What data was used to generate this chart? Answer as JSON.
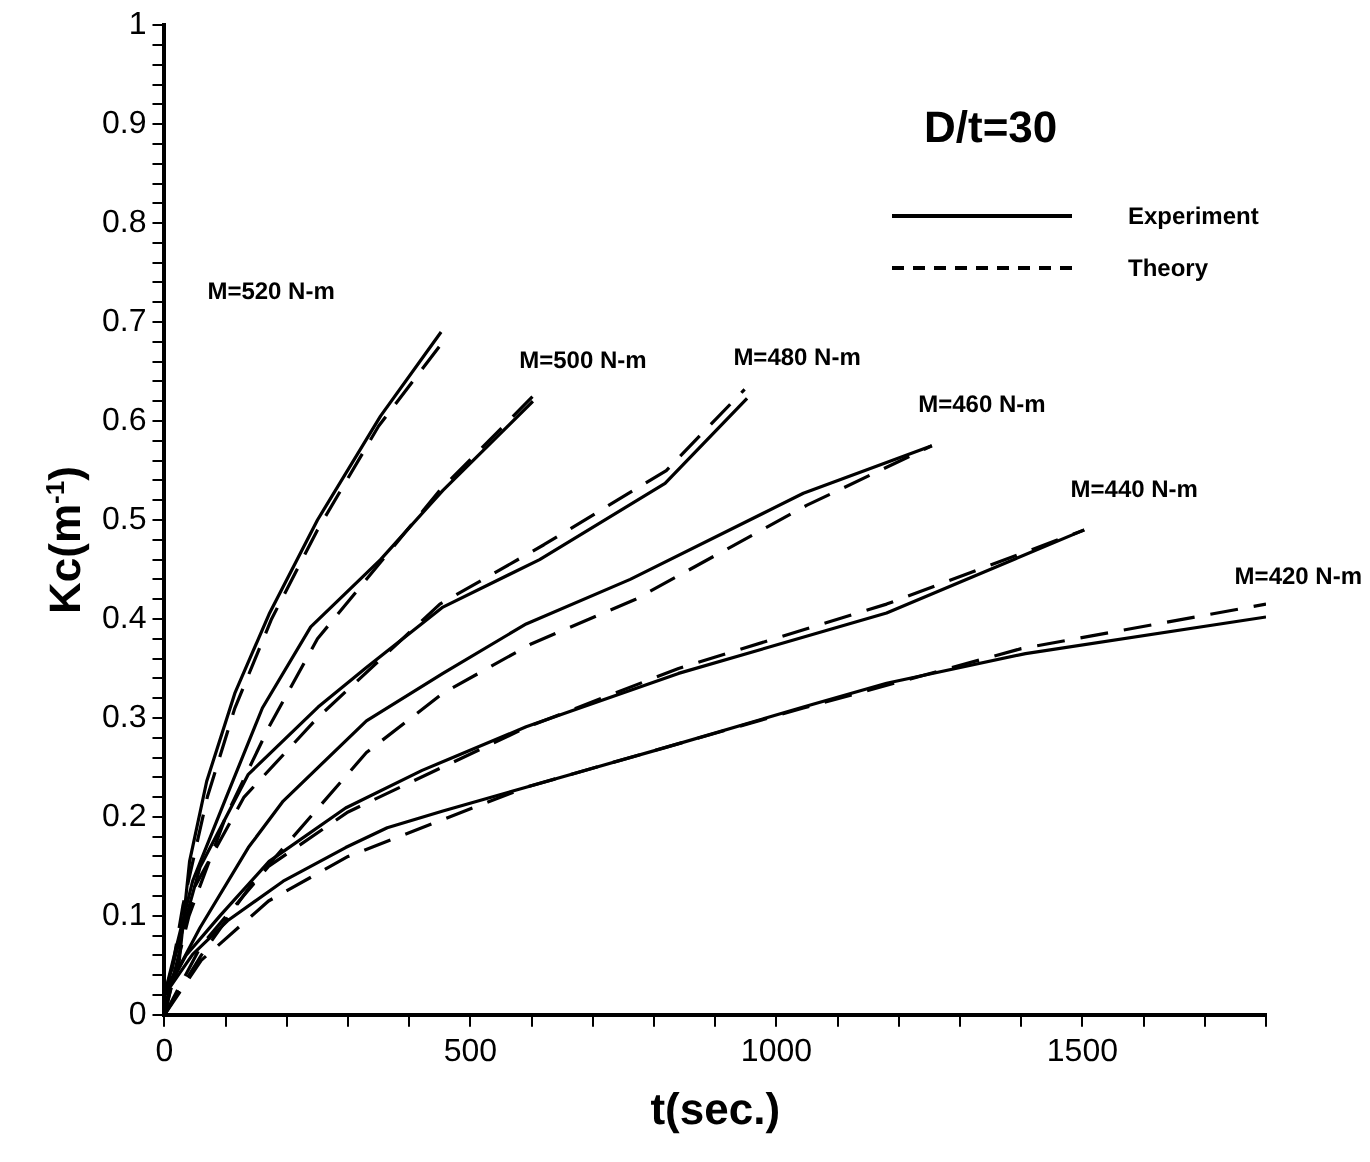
{
  "chart_data": {
    "type": "line",
    "xlabel": "t(sec.)",
    "ylabel": "Kc(m$^{-1}$)",
    "legend_title": "D/t=30",
    "xlim": [
      0,
      1800
    ],
    "ylim": [
      0,
      1
    ],
    "xticks": [
      0,
      {
        "value": 100,
        "label": null
      },
      {
        "value": 200,
        "label": null
      },
      {
        "value": 300,
        "label": null
      },
      {
        "value": 400,
        "label": null
      },
      500,
      {
        "value": 600,
        "label": null
      },
      {
        "value": 700,
        "label": null
      },
      {
        "value": 800,
        "label": null
      },
      {
        "value": 900,
        "label": null
      },
      1000,
      {
        "value": 1100,
        "label": null
      },
      {
        "value": 1200,
        "label": null
      },
      {
        "value": 1300,
        "label": null
      },
      {
        "value": 1400,
        "label": null
      },
      1500,
      {
        "value": 1600,
        "label": null
      },
      {
        "value": 1700,
        "label": null
      },
      {
        "value": 1800,
        "label": null
      }
    ],
    "yticks": [
      0,
      {
        "value": 0.02,
        "label": null
      },
      {
        "value": 0.04,
        "label": null
      },
      {
        "value": 0.06,
        "label": null
      },
      {
        "value": 0.08,
        "label": null
      },
      0.1,
      {
        "value": 0.12,
        "label": null
      },
      {
        "value": 0.14,
        "label": null
      },
      {
        "value": 0.16,
        "label": null
      },
      {
        "value": 0.18,
        "label": null
      },
      0.2,
      {
        "value": 0.22,
        "label": null
      },
      {
        "value": 0.24,
        "label": null
      },
      {
        "value": 0.26,
        "label": null
      },
      {
        "value": 0.28,
        "label": null
      },
      0.3,
      {
        "value": 0.32,
        "label": null
      },
      {
        "value": 0.34,
        "label": null
      },
      {
        "value": 0.36,
        "label": null
      },
      {
        "value": 0.38,
        "label": null
      },
      0.4,
      {
        "value": 0.42,
        "label": null
      },
      {
        "value": 0.44,
        "label": null
      },
      {
        "value": 0.46,
        "label": null
      },
      {
        "value": 0.48,
        "label": null
      },
      0.5,
      {
        "value": 0.52,
        "label": null
      },
      {
        "value": 0.54,
        "label": null
      },
      {
        "value": 0.56,
        "label": null
      },
      {
        "value": 0.58,
        "label": null
      },
      0.6,
      {
        "value": 0.62,
        "label": null
      },
      {
        "value": 0.64,
        "label": null
      },
      {
        "value": 0.66,
        "label": null
      },
      {
        "value": 0.68,
        "label": null
      },
      0.7,
      {
        "value": 0.72,
        "label": null
      },
      {
        "value": 0.74,
        "label": null
      },
      {
        "value": 0.76,
        "label": null
      },
      {
        "value": 0.78,
        "label": null
      },
      0.8,
      {
        "value": 0.82,
        "label": null
      },
      {
        "value": 0.84,
        "label": null
      },
      {
        "value": 0.86,
        "label": null
      },
      {
        "value": 0.88,
        "label": null
      },
      0.9,
      {
        "value": 0.92,
        "label": null
      },
      {
        "value": 0.94,
        "label": null
      },
      {
        "value": 0.96,
        "label": null
      },
      {
        "value": 0.98,
        "label": null
      },
      1
    ],
    "grid": false,
    "legend": "top right",
    "marker": "none",
    "series": [
      {
        "name": "Experiment",
        "color": "#000000",
        "line_style": "solid",
        "x": [
          0,
          24,
          41,
          69,
          115,
          171,
          250,
          353,
          452
        ],
        "values": [
          0.02,
          0.054,
          0.155,
          0.236,
          0.325,
          0.405,
          0.5,
          0.605,
          0.69
        ]
      },
      {
        "name": "Theory",
        "color": "#000000",
        "line_style": "dashed",
        "x": [
          0,
          30,
          70,
          115,
          175,
          250,
          350,
          455
        ],
        "values": [
          0,
          0.11,
          0.22,
          0.31,
          0.4,
          0.49,
          0.595,
          0.68
        ]
      },
      {
        "color": "#000000",
        "line_style": "solid",
        "x": [
          0,
          46,
          103,
          160,
          239,
          353,
          455,
          602
        ],
        "values": [
          0.02,
          0.135,
          0.223,
          0.31,
          0.392,
          0.46,
          0.53,
          0.62
        ]
      },
      {
        "color": "#000000",
        "line_style": "dashed",
        "x": [
          0,
          40,
          100,
          170,
          250,
          350,
          450,
          602
        ],
        "values": [
          0,
          0.1,
          0.2,
          0.29,
          0.38,
          0.455,
          0.53,
          0.625
        ]
      },
      {
        "color": "#000000",
        "line_style": "solid",
        "x": [
          0,
          58,
          137,
          251,
          330,
          455,
          613,
          818,
          952
        ],
        "values": [
          0.02,
          0.149,
          0.243,
          0.311,
          0.351,
          0.412,
          0.46,
          0.537,
          0.623
        ]
      },
      {
        "color": "#000000",
        "line_style": "dashed",
        "x": [
          0,
          50,
          130,
          250,
          450,
          620,
          820,
          948
        ],
        "values": [
          0,
          0.13,
          0.22,
          0.3,
          0.415,
          0.475,
          0.55,
          0.632
        ]
      },
      {
        "color": "#000000",
        "line_style": "solid",
        "x": [
          0,
          58,
          137,
          194,
          330,
          455,
          591,
          761,
          1044,
          1254
        ],
        "values": [
          0.02,
          0.088,
          0.169,
          0.216,
          0.297,
          0.345,
          0.395,
          0.44,
          0.527,
          0.575
        ]
      },
      {
        "color": "#000000",
        "line_style": "dashed",
        "x": [
          0,
          60,
          140,
          330,
          455,
          600,
          770,
          1050,
          1254
        ],
        "values": [
          0,
          0.06,
          0.13,
          0.265,
          0.325,
          0.375,
          0.42,
          0.515,
          0.575
        ]
      },
      {
        "color": "#000000",
        "line_style": "solid",
        "x": [
          0,
          35,
          92,
          171,
          296,
          421,
          591,
          840,
          1180,
          1503
        ],
        "values": [
          0.02,
          0.06,
          0.101,
          0.155,
          0.209,
          0.247,
          0.291,
          0.345,
          0.406,
          0.49
        ]
      },
      {
        "color": "#000000",
        "line_style": "dashed",
        "x": [
          0,
          60,
          170,
          300,
          590,
          840,
          1180,
          1503
        ],
        "values": [
          0,
          0.07,
          0.15,
          0.205,
          0.29,
          0.35,
          0.415,
          0.49
        ]
      },
      {
        "color": "#000000",
        "line_style": "solid",
        "x": [
          0,
          46,
          103,
          194,
          296,
          364,
          455,
          591,
          818,
          1044,
          1180,
          1407,
          1800
        ],
        "values": [
          0.02,
          0.061,
          0.095,
          0.135,
          0.169,
          0.189,
          0.206,
          0.23,
          0.27,
          0.311,
          0.335,
          0.365,
          0.402
        ]
      },
      {
        "color": "#000000",
        "line_style": "dashed",
        "x": [
          0,
          60,
          170,
          300,
          591,
          1044,
          1400,
          1800
        ],
        "values": [
          0,
          0.055,
          0.115,
          0.16,
          0.23,
          0.31,
          0.37,
          0.415
        ]
      }
    ],
    "annotations": [
      "M=520 N-m",
      "M=500 N-m",
      "M=480 N-m",
      "M=460 N-m",
      "M=440 N-m",
      "M=420 N-m"
    ]
  }
}
